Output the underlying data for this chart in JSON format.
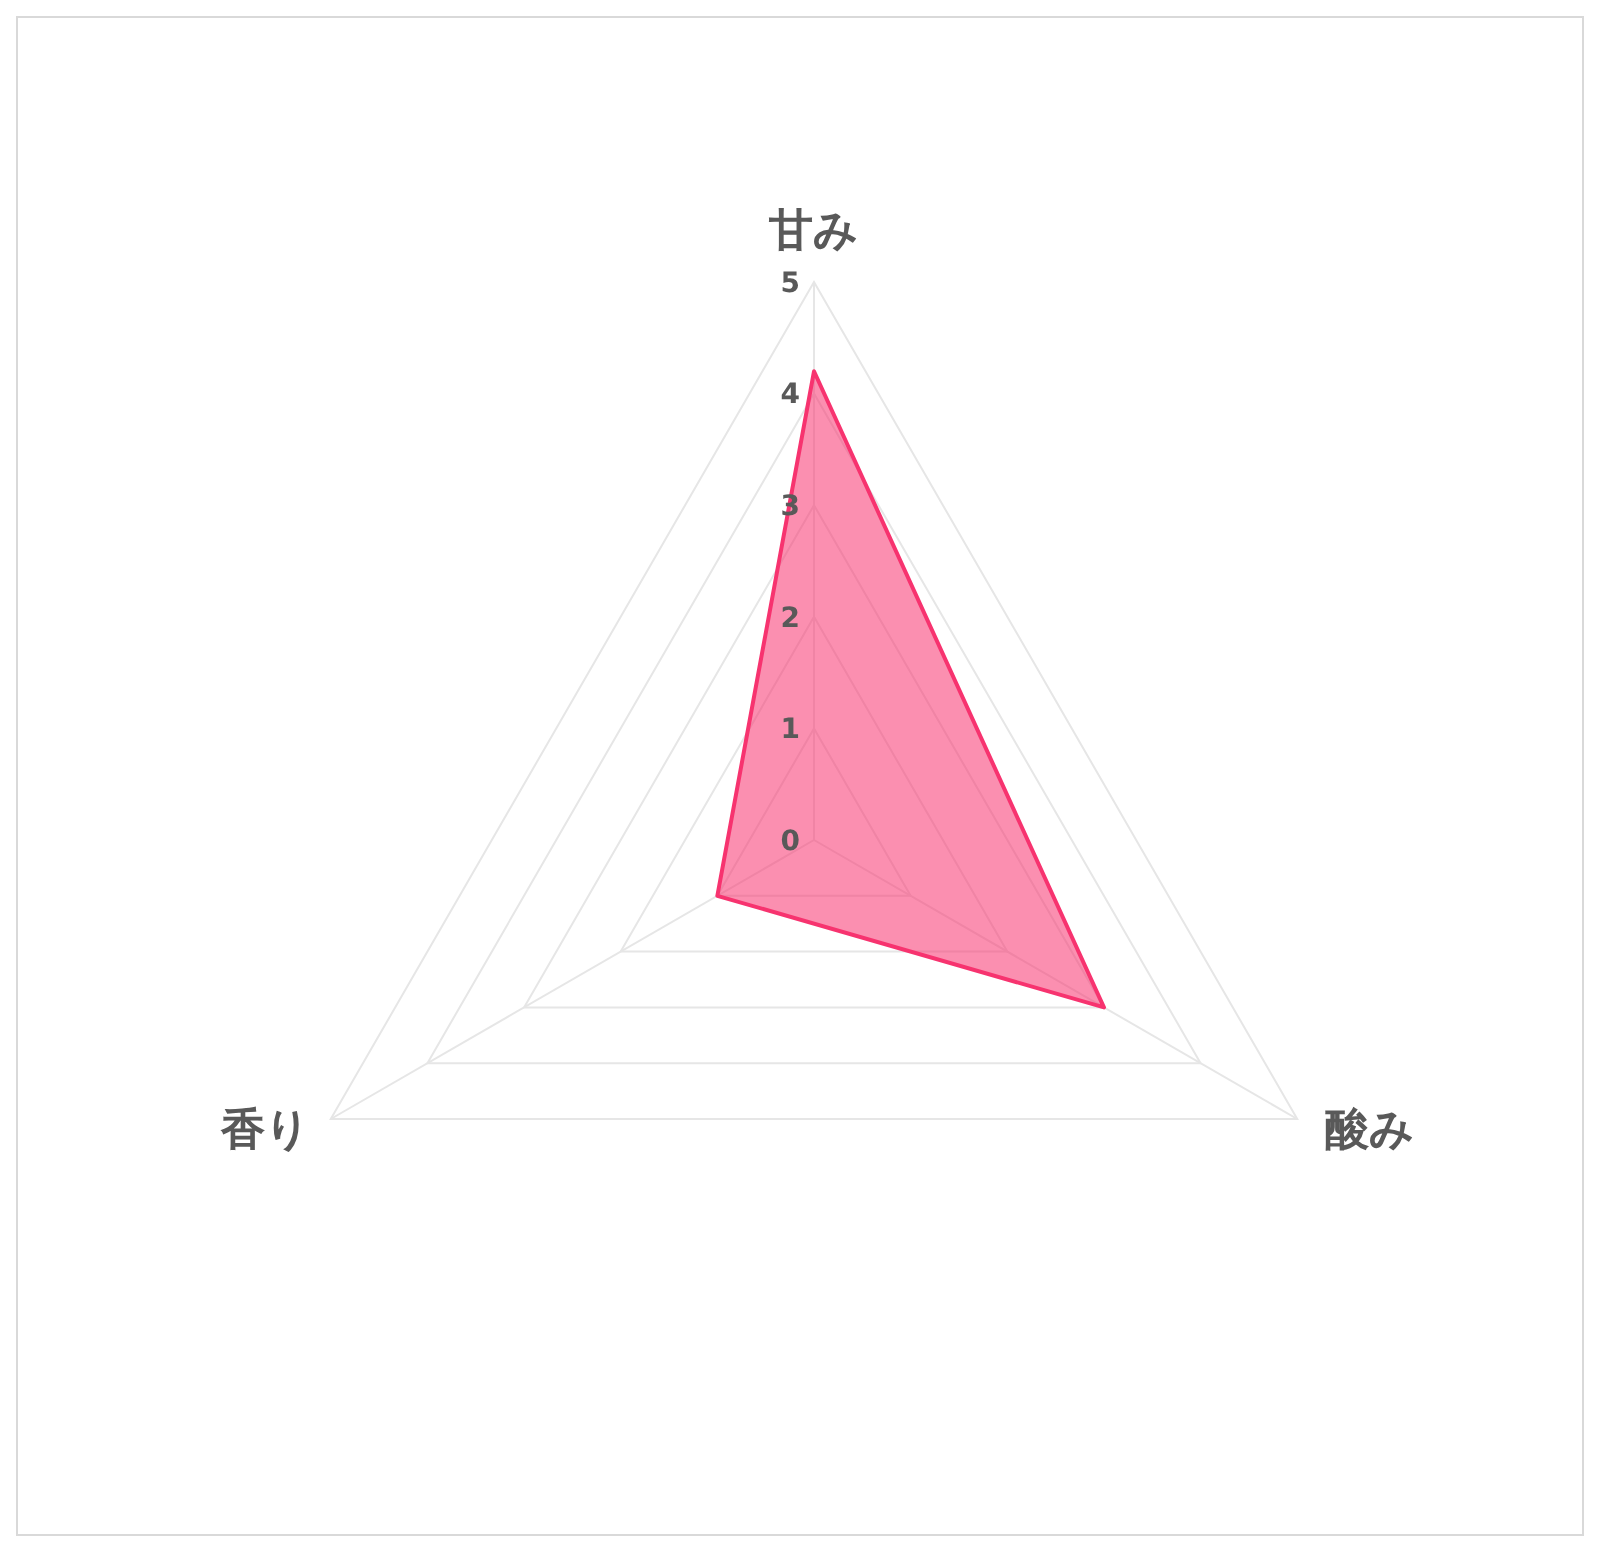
{
  "chart_data": {
    "type": "radar",
    "categories": [
      "甘み",
      "酸み",
      "香り"
    ],
    "series": [
      {
        "color": "#f7336f",
        "values": [
          4.2,
          3,
          1
        ]
      }
    ],
    "ylim": [
      0,
      5
    ],
    "yticks": [
      0,
      1,
      2,
      3,
      4,
      5
    ],
    "grid": true
  }
}
